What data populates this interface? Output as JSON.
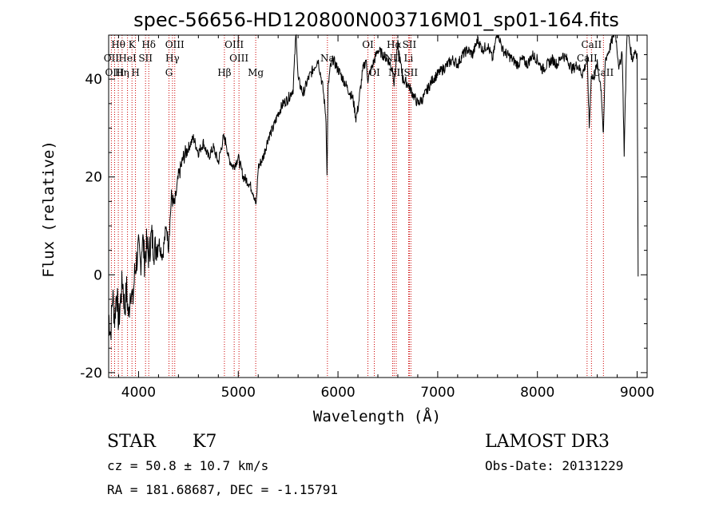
{
  "chart_data": {
    "type": "line",
    "title": "spec-56656-HD120800N003716M01_sp01-164.fits",
    "xlabel": "Wavelength (Å)",
    "ylabel": "Flux (relative)",
    "xlim": [
      3700,
      9100
    ],
    "ylim": [
      -21,
      49
    ],
    "x_ticks": [
      4000,
      5000,
      6000,
      7000,
      8000,
      9000
    ],
    "y_ticks": [
      -20,
      0,
      20,
      40
    ],
    "series": [
      {
        "name": "spectrum",
        "x": [
          3700,
          3720,
          3740,
          3760,
          3780,
          3800,
          3820,
          3840,
          3860,
          3880,
          3900,
          3920,
          3940,
          3960,
          3980,
          4000,
          4020,
          4040,
          4060,
          4080,
          4100,
          4130,
          4160,
          4200,
          4240,
          4280,
          4300,
          4330,
          4360,
          4400,
          4450,
          4500,
          4550,
          4600,
          4650,
          4700,
          4750,
          4800,
          4850,
          4880,
          4900,
          4950,
          5000,
          5050,
          5100,
          5150,
          5180,
          5200,
          5250,
          5300,
          5350,
          5400,
          5450,
          5500,
          5550,
          5580,
          5600,
          5650,
          5700,
          5750,
          5800,
          5850,
          5880,
          5890,
          5900,
          5920,
          5950,
          6000,
          6050,
          6100,
          6150,
          6180,
          6200,
          6250,
          6280,
          6300,
          6350,
          6400,
          6450,
          6500,
          6550,
          6563,
          6600,
          6650,
          6700,
          6750,
          6800,
          6850,
          6900,
          6950,
          7000,
          7050,
          7100,
          7150,
          7200,
          7250,
          7300,
          7350,
          7400,
          7450,
          7500,
          7550,
          7600,
          7650,
          7700,
          7750,
          7800,
          7850,
          7900,
          7950,
          8000,
          8050,
          8100,
          8150,
          8200,
          8250,
          8300,
          8350,
          8400,
          8450,
          8500,
          8520,
          8540,
          8560,
          8600,
          8640,
          8662,
          8680,
          8700,
          8720,
          8750,
          8780,
          8800,
          8820,
          8850,
          8870,
          8900,
          8920,
          8950,
          8980,
          9000,
          9010
        ],
        "y": [
          -8,
          -12,
          -4,
          -9,
          -3,
          -10,
          -5,
          -1,
          -7,
          -3,
          -9,
          -2,
          -6,
          0,
          3,
          5,
          2,
          8,
          3,
          6,
          4,
          8,
          5,
          7,
          4,
          10,
          6,
          16,
          14,
          20,
          24,
          26,
          28,
          25,
          27,
          24,
          26,
          23,
          28,
          27,
          24,
          22,
          24,
          20,
          19,
          17,
          14,
          22,
          24,
          28,
          30,
          33,
          35,
          36,
          38,
          50,
          40,
          37,
          40,
          42,
          44,
          38,
          32,
          20,
          38,
          42,
          44,
          42,
          40,
          38,
          36,
          32,
          34,
          42,
          44,
          40,
          43,
          46,
          45,
          44,
          42,
          39,
          47,
          40,
          39,
          37,
          35,
          36,
          38,
          40,
          41,
          42,
          43,
          44,
          43,
          45,
          46,
          45,
          48,
          46,
          47,
          44,
          50,
          46,
          45,
          44,
          43,
          44,
          43,
          45,
          44,
          42,
          43,
          44,
          43,
          45,
          44,
          42,
          43,
          41,
          44,
          30,
          41,
          40,
          43,
          38,
          28,
          44,
          45,
          46,
          48,
          50,
          46,
          42,
          46,
          25,
          52,
          48,
          44,
          46,
          45,
          0
        ],
        "color": "#000000"
      }
    ],
    "emission_lines": [
      {
        "label": "Hθ",
        "x": 3797,
        "row": 0
      },
      {
        "label": "OII",
        "x": 3727,
        "row": 1
      },
      {
        "label": "OIII",
        "x": 3760,
        "row": 2
      },
      {
        "label": "K",
        "x": 3934,
        "row": 0
      },
      {
        "label": "HeI",
        "x": 3889,
        "row": 1
      },
      {
        "label": "Hη",
        "x": 3835,
        "row": 2
      },
      {
        "label": "SII",
        "x": 4070,
        "row": 1
      },
      {
        "label": "H",
        "x": 3969,
        "row": 2
      },
      {
        "label": "Hδ",
        "x": 4102,
        "row": 0
      },
      {
        "label": "OIII",
        "x": 4363,
        "row": 0
      },
      {
        "label": "Hγ",
        "x": 4340,
        "row": 1
      },
      {
        "label": "G",
        "x": 4305,
        "row": 2
      },
      {
        "label": "OIII",
        "x": 4959,
        "row": 0
      },
      {
        "label": "OIII",
        "x": 5007,
        "row": 1
      },
      {
        "label": "Hβ",
        "x": 4861,
        "row": 2
      },
      {
        "label": "Mg",
        "x": 5175,
        "row": 2
      },
      {
        "label": "Na",
        "x": 5894,
        "row": 1
      },
      {
        "label": "OI",
        "x": 6300,
        "row": 0
      },
      {
        "label": "OI",
        "x": 6364,
        "row": 2
      },
      {
        "label": "Hα",
        "x": 6563,
        "row": 0
      },
      {
        "label": "SII",
        "x": 6716,
        "row": 0
      },
      {
        "label": "NII",
        "x": 6548,
        "row": 1
      },
      {
        "label": "Li",
        "x": 6708,
        "row": 1
      },
      {
        "label": "NII",
        "x": 6584,
        "row": 2
      },
      {
        "label": "SII",
        "x": 6731,
        "row": 2
      },
      {
        "label": "CaII",
        "x": 8542,
        "row": 0
      },
      {
        "label": "CaII",
        "x": 8498,
        "row": 1
      },
      {
        "label": "CaII",
        "x": 8662,
        "row": 2
      }
    ],
    "line_color": "#cc0000"
  },
  "info": {
    "object_class": "STAR",
    "subclass": "K7",
    "survey": "LAMOST DR3",
    "redshift": "cz = 50.8 ± 10.7 km/s",
    "obs_date": "Obs-Date: 20131229",
    "coords": "RA = 181.68687, DEC =  -1.15791"
  }
}
